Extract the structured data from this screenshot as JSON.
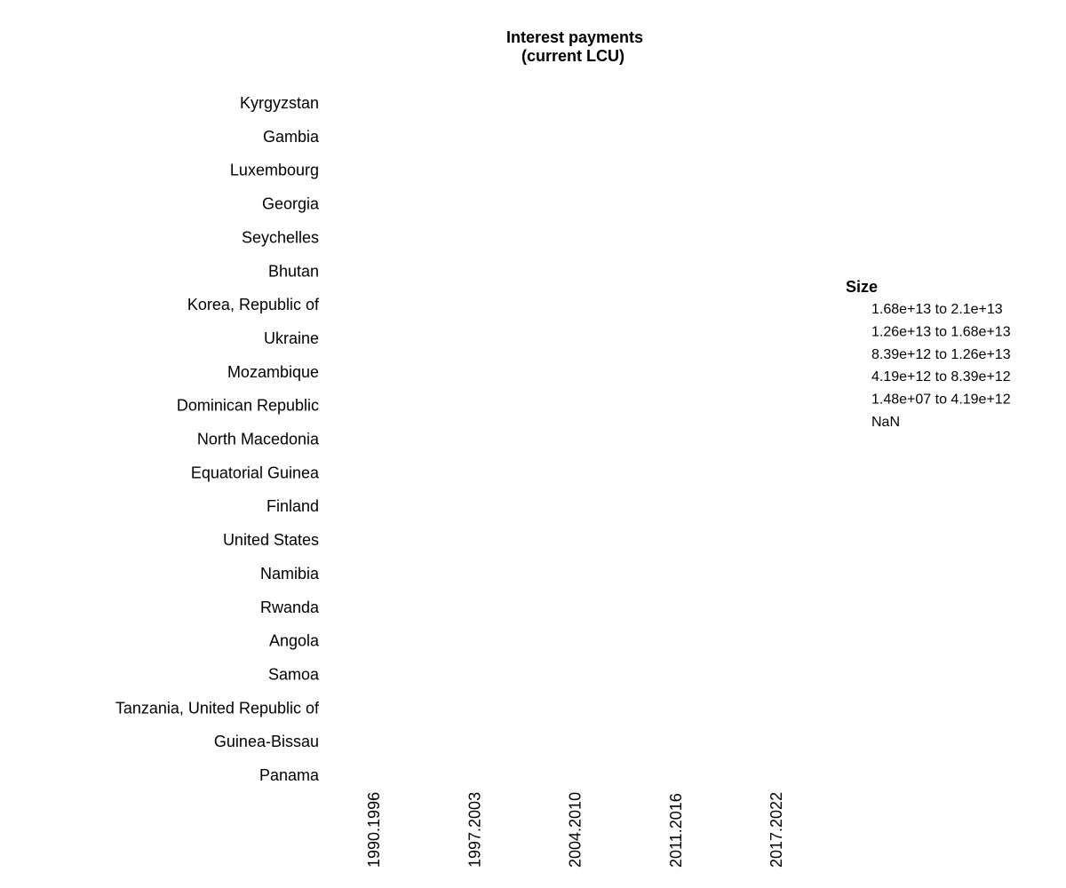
{
  "chart_data": {
    "type": "heatmap",
    "title_lines": [
      "Interest payments",
      "(current LCU)"
    ],
    "rows": [
      "Kyrgyzstan",
      "Gambia",
      "Luxembourg",
      "Georgia",
      "Seychelles",
      "Bhutan",
      "Korea, Republic of",
      "Ukraine",
      "Mozambique",
      "Dominican Republic",
      "North Macedonia",
      "Equatorial Guinea",
      "Finland",
      "United States",
      "Namibia",
      "Rwanda",
      "Angola",
      "Samoa",
      "Tanzania, United Republic of",
      "Guinea-Bissau",
      "Panama"
    ],
    "columns": [
      "1990.1996",
      "1997.2003",
      "2004.2010",
      "2011.2016",
      "2017.2022"
    ],
    "values": null,
    "legend": {
      "title": "Size",
      "items": [
        "1.68e+13 to 2.1e+13",
        "1.26e+13 to 1.68e+13",
        "8.39e+12 to 1.26e+13",
        "4.19e+12 to 8.39e+12",
        "1.48e+07 to 4.19e+12",
        "NaN"
      ],
      "placement": "right"
    },
    "grid": false
  }
}
